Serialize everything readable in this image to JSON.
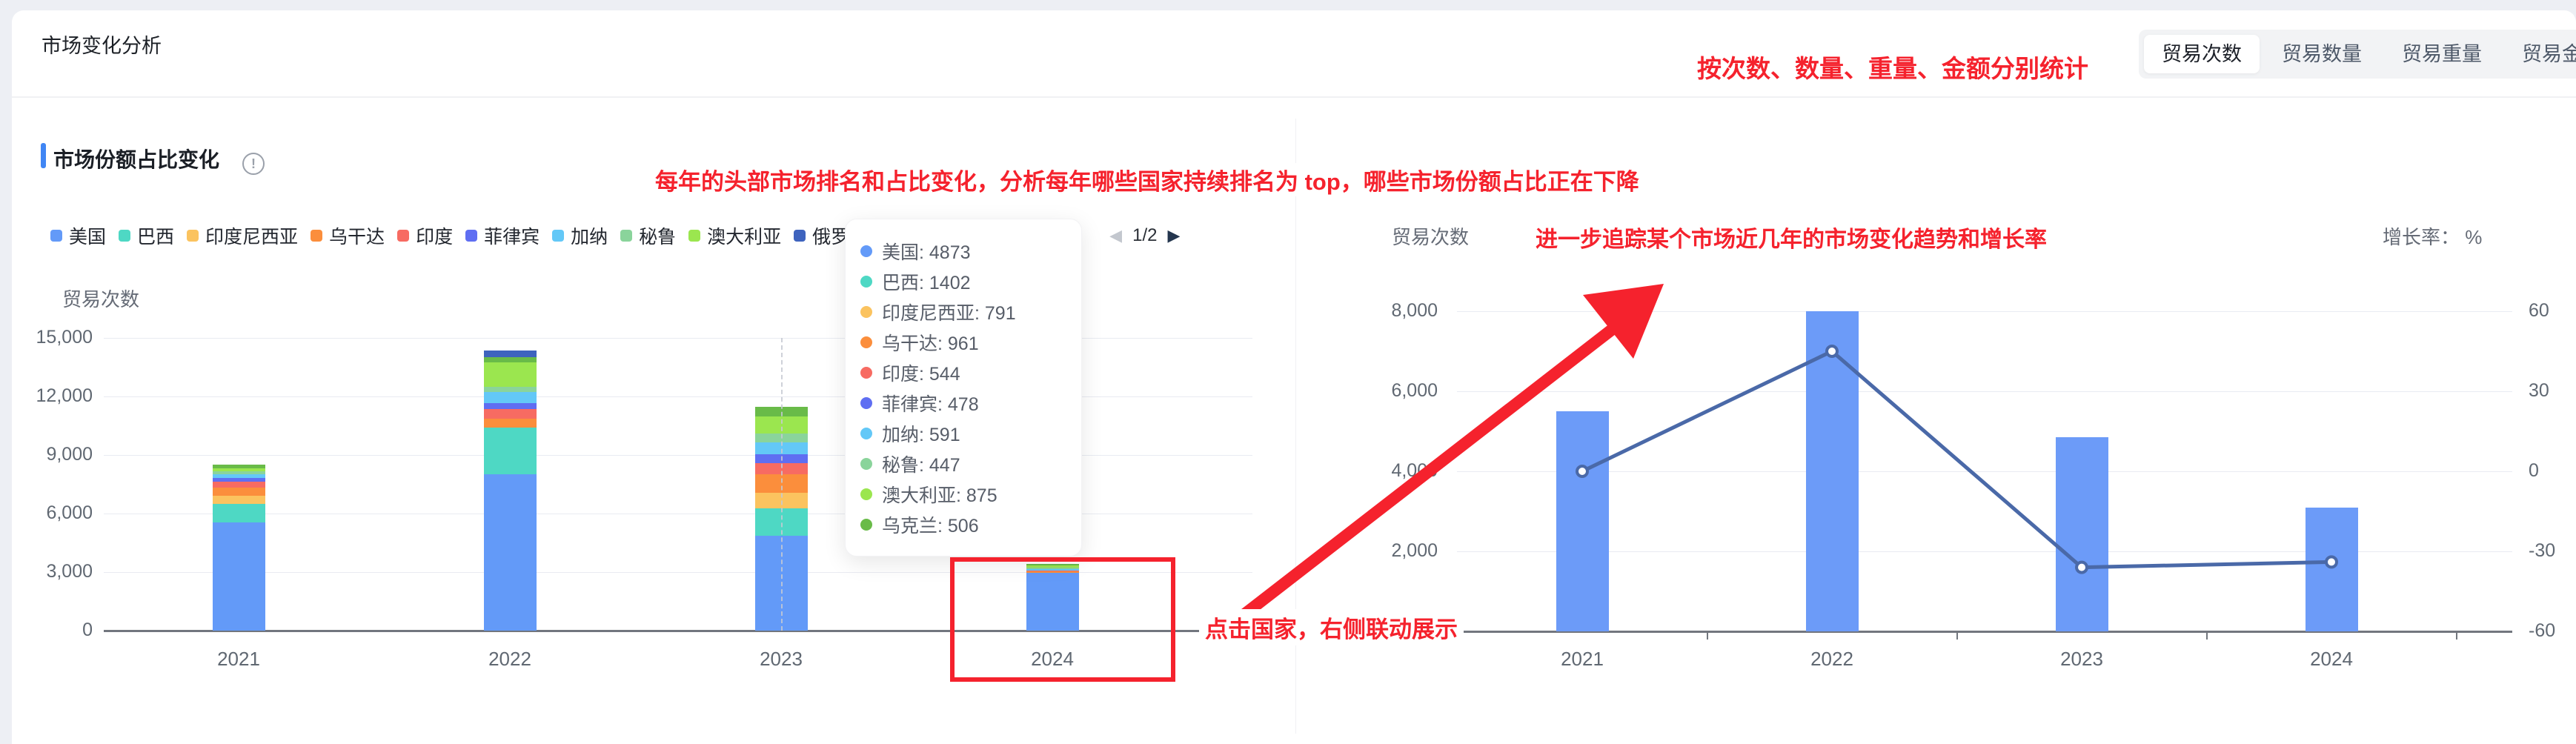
{
  "page": {
    "title": "市场变化分析"
  },
  "metric_tabs": {
    "items": [
      {
        "label": "贸易次数",
        "selected": true
      },
      {
        "label": "贸易数量",
        "selected": false
      },
      {
        "label": "贸易重量",
        "selected": false
      },
      {
        "label": "贸易金额",
        "selected": false
      }
    ]
  },
  "section": {
    "title": "市场份额占比变化",
    "info_icon": "!"
  },
  "annotations": {
    "dimensions_note": "按次数、数量、重量、金额分别统计",
    "legend_note": "每年的头部市场排名和占比变化，分析每年哪些国家持续排名为 top，哪些市场份额占比正在下降",
    "trend_note": "进一步追踪某个市场近几年的市场变化趋势和增长率",
    "click_note": "点击国家，右侧联动展示"
  },
  "colors": {
    "accent_blue": "#4086F4",
    "annotation_red": "#F5222D",
    "bar_blue": "#6C9BF8",
    "line_blue": "#4A69A8"
  },
  "legend": {
    "items": [
      {
        "label": "美国",
        "color": "#639AF8"
      },
      {
        "label": "巴西",
        "color": "#4ED8C4"
      },
      {
        "label": "印度尼西亚",
        "color": "#FBC35F"
      },
      {
        "label": "乌干达",
        "color": "#FB8E3C"
      },
      {
        "label": "印度",
        "color": "#F76B62"
      },
      {
        "label": "菲律宾",
        "color": "#5F6EF2"
      },
      {
        "label": "加纳",
        "color": "#63C8F7"
      },
      {
        "label": "秘鲁",
        "color": "#8AD49B"
      },
      {
        "label": "澳大利亚",
        "color": "#9BE64F"
      },
      {
        "label": "俄罗斯",
        "color": "#3E63BE"
      },
      {
        "label": "乌克兰",
        "color": "#69BB48"
      }
    ],
    "pagination": {
      "label": "1/2",
      "prev_enabled": false,
      "next_enabled": true
    }
  },
  "tooltip": {
    "year": "2023",
    "rows": [
      {
        "label": "美国",
        "value": "4873",
        "color": "#639AF8"
      },
      {
        "label": "巴西",
        "value": "1402",
        "color": "#4ED8C4"
      },
      {
        "label": "印度尼西亚",
        "value": "791",
        "color": "#FBC35F"
      },
      {
        "label": "乌干达",
        "value": "961",
        "color": "#FB8E3C"
      },
      {
        "label": "印度",
        "value": "544",
        "color": "#F76B62"
      },
      {
        "label": "菲律宾",
        "value": "478",
        "color": "#5F6EF2"
      },
      {
        "label": "加纳",
        "value": "591",
        "color": "#63C8F7"
      },
      {
        "label": "秘鲁",
        "value": "447",
        "color": "#8AD49B"
      },
      {
        "label": "澳大利亚",
        "value": "875",
        "color": "#9BE64F"
      },
      {
        "label": "乌克兰",
        "value": "506",
        "color": "#69BB48"
      }
    ]
  },
  "chart_data": [
    {
      "type": "bar",
      "stacked": true,
      "title": "市场份额占比变化",
      "ylabel": "贸易次数",
      "categories": [
        "2021",
        "2022",
        "2023",
        "2024"
      ],
      "series": [
        {
          "name": "美国",
          "color": "#639AF8",
          "values": [
            5550,
            8000,
            4873,
            2950
          ]
        },
        {
          "name": "巴西",
          "color": "#4ED8C4",
          "values": [
            950,
            2390,
            1402,
            0
          ]
        },
        {
          "name": "印度尼西亚",
          "color": "#FBC35F",
          "values": [
            420,
            0,
            791,
            0
          ]
        },
        {
          "name": "乌干达",
          "color": "#FB8E3C",
          "values": [
            420,
            455,
            961,
            80
          ]
        },
        {
          "name": "印度",
          "color": "#F76B62",
          "values": [
            280,
            495,
            544,
            60
          ]
        },
        {
          "name": "菲律宾",
          "color": "#5F6EF2",
          "values": [
            220,
            305,
            478,
            0
          ]
        },
        {
          "name": "加纳",
          "color": "#63C8F7",
          "values": [
            160,
            570,
            591,
            80
          ]
        },
        {
          "name": "秘鲁",
          "color": "#8AD49B",
          "values": [
            150,
            265,
            447,
            60
          ]
        },
        {
          "name": "澳大利亚",
          "color": "#9BE64F",
          "values": [
            180,
            1255,
            875,
            120
          ]
        },
        {
          "name": "乌克兰",
          "color": "#69BB48",
          "values": [
            180,
            265,
            506,
            80
          ]
        },
        {
          "name": "俄罗斯",
          "color": "#3E63BE",
          "values": [
            0,
            340,
            0,
            0
          ]
        }
      ],
      "ylim": [
        0,
        15000
      ],
      "yticks": [
        "0",
        "3,000",
        "6,000",
        "9,000",
        "12,000",
        "15,000"
      ],
      "grid": true,
      "legend_position": "top",
      "hover_year": "2023",
      "highlight_year": "2024"
    },
    {
      "type": "bar+line",
      "categories": [
        "2021",
        "2022",
        "2023",
        "2024"
      ],
      "bar_series": {
        "name": "贸易次数",
        "color": "#6C9BF8",
        "values": [
          5500,
          8000,
          4850,
          3100
        ]
      },
      "line_series": {
        "name": "增长率",
        "color": "#4A69A8",
        "values": [
          0,
          45,
          -36,
          -34
        ]
      },
      "y_left": {
        "label": "贸易次数",
        "ticks": [
          "0",
          "2,000",
          "4,000",
          "6,000",
          "8,000"
        ],
        "lim": [
          0,
          8000
        ]
      },
      "y_right": {
        "label": "增长率： %",
        "ticks": [
          "60",
          "30",
          "0",
          "-30",
          "-60"
        ],
        "lim": [
          -60,
          60
        ]
      },
      "grid": true,
      "legend_position": "none"
    }
  ]
}
